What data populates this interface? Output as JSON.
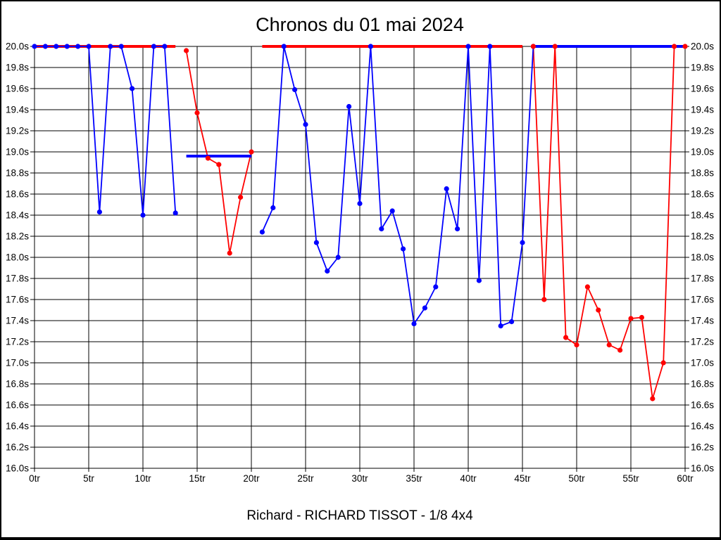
{
  "window": {
    "background": "#ffffff",
    "frame_color": "#000000"
  },
  "chart_data": {
    "type": "line",
    "title": "Chronos du 01 mai 2024",
    "subtitle": "Richard - RICHARD TISSOT - 1/8 4x4",
    "grid": true,
    "legend": "none",
    "x_axis": {
      "unit": "tr",
      "min": 0,
      "max": 60,
      "tick_step": 5,
      "tick_labels": [
        "0tr",
        "5tr",
        "10tr",
        "15tr",
        "20tr",
        "25tr",
        "30tr",
        "35tr",
        "40tr",
        "45tr",
        "50tr",
        "55tr",
        "60tr"
      ]
    },
    "y_axis": {
      "unit": "s",
      "min": 16.0,
      "max": 20.0,
      "tick_step": 0.2,
      "tick_labels": [
        "20.0s",
        "19.8s",
        "19.6s",
        "19.4s",
        "19.2s",
        "19.0s",
        "18.8s",
        "18.6s",
        "18.4s",
        "18.2s",
        "18.0s",
        "17.8s",
        "17.6s",
        "17.4s",
        "17.2s",
        "17.0s",
        "16.8s",
        "16.6s",
        "16.4s",
        "16.2s",
        "16.0s"
      ],
      "labels_on_both_sides": true
    },
    "cap_value_seconds": 20.0,
    "series": [
      {
        "name": "driver-red",
        "color": "#ff0000",
        "marker": "circle",
        "runs": [
          {
            "style": "cap",
            "markers": false,
            "points": [
              [
                0,
                20
              ],
              [
                13,
                20
              ]
            ]
          },
          {
            "style": "laps",
            "markers": true,
            "points": [
              [
                14,
                19.96
              ],
              [
                15,
                19.37
              ],
              [
                16,
                18.94
              ],
              [
                17,
                18.88
              ],
              [
                18,
                18.04
              ],
              [
                19,
                18.57
              ],
              [
                20,
                19.0
              ]
            ]
          },
          {
            "style": "cap",
            "markers": false,
            "points": [
              [
                21,
                20
              ],
              [
                45,
                20
              ]
            ]
          },
          {
            "style": "laps",
            "markers": true,
            "points": [
              [
                46,
                20
              ],
              [
                47,
                17.6
              ],
              [
                48,
                20
              ],
              [
                49,
                17.24
              ],
              [
                50,
                17.17
              ],
              [
                51,
                17.72
              ],
              [
                52,
                17.5
              ],
              [
                53,
                17.17
              ],
              [
                54,
                17.12
              ],
              [
                55,
                17.42
              ],
              [
                56,
                17.43
              ],
              [
                57,
                16.66
              ],
              [
                58,
                17.0
              ],
              [
                59,
                20
              ],
              [
                60,
                20
              ]
            ]
          }
        ]
      },
      {
        "name": "driver-blue",
        "color": "#0000ff",
        "marker": "circle",
        "runs": [
          {
            "style": "laps",
            "markers": true,
            "points": [
              [
                0,
                20
              ],
              [
                1,
                20
              ],
              [
                2,
                20
              ],
              [
                3,
                20
              ],
              [
                4,
                20
              ],
              [
                5,
                20
              ],
              [
                6,
                18.43
              ],
              [
                7,
                20
              ],
              [
                8,
                20
              ],
              [
                9,
                19.6
              ],
              [
                10,
                18.4
              ],
              [
                11,
                20
              ],
              [
                12,
                20
              ],
              [
                13,
                18.42
              ]
            ]
          },
          {
            "style": "cap",
            "markers": false,
            "points": [
              [
                14,
                18.96
              ],
              [
                20,
                18.96
              ]
            ]
          },
          {
            "style": "laps",
            "markers": true,
            "points": [
              [
                21,
                18.24
              ],
              [
                22,
                18.47
              ],
              [
                23,
                20
              ],
              [
                24,
                19.59
              ],
              [
                25,
                19.26
              ],
              [
                26,
                18.14
              ],
              [
                27,
                17.87
              ],
              [
                28,
                18.0
              ],
              [
                29,
                19.43
              ],
              [
                30,
                18.51
              ],
              [
                31,
                20
              ],
              [
                32,
                18.27
              ],
              [
                33,
                18.44
              ],
              [
                34,
                18.08
              ],
              [
                35,
                17.37
              ],
              [
                36,
                17.52
              ],
              [
                37,
                17.72
              ],
              [
                38,
                18.65
              ],
              [
                39,
                18.27
              ],
              [
                40,
                20
              ],
              [
                41,
                17.78
              ],
              [
                42,
                20
              ],
              [
                43,
                17.35
              ],
              [
                44,
                17.39
              ],
              [
                45,
                18.14
              ],
              [
                46,
                20
              ]
            ]
          },
          {
            "style": "cap",
            "markers": false,
            "points": [
              [
                46,
                20
              ],
              [
                60,
                20
              ]
            ]
          }
        ]
      }
    ]
  }
}
